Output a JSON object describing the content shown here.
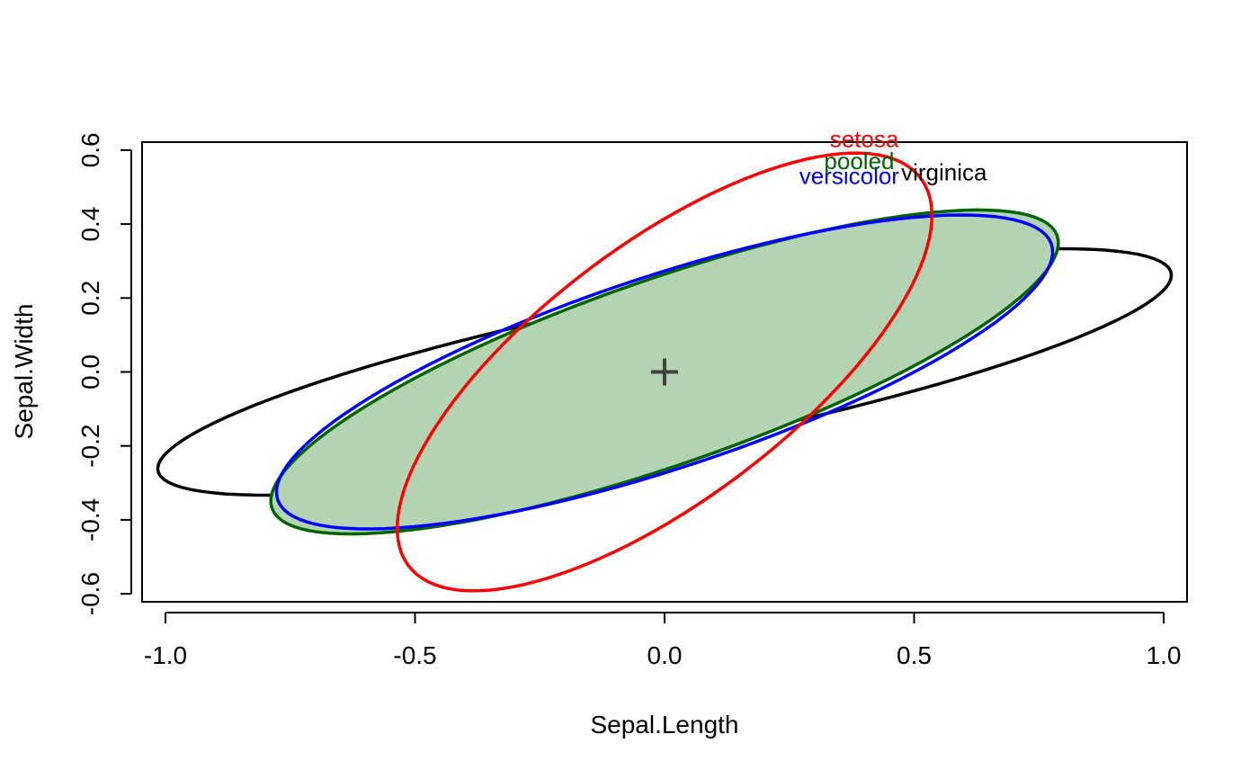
{
  "chart_data": {
    "type": "ellipse",
    "title": "",
    "xlabel": "Sepal.Length",
    "ylabel": "Sepal.Width",
    "xlim": [
      -1.05,
      1.05
    ],
    "ylim": [
      -0.62,
      0.63
    ],
    "x_ticks": [
      "-1.0",
      "-0.5",
      "0.0",
      "0.5",
      "1.0"
    ],
    "x_tick_values": [
      -1.0,
      -0.5,
      0.0,
      0.5,
      1.0
    ],
    "y_ticks": [
      "-0.6",
      "-0.4",
      "-0.2",
      "0.0",
      "0.2",
      "0.4",
      "0.6"
    ],
    "y_tick_values": [
      -0.6,
      -0.4,
      -0.2,
      0.0,
      0.2,
      0.4,
      0.6
    ],
    "grid": false,
    "center": [
      0.0,
      0.0
    ],
    "center_marker": "+",
    "center_color": "#404040",
    "series": [
      {
        "name": "setosa",
        "color": "#ff0000",
        "fill": "none",
        "semi_axes": [
          0.74,
          0.3
        ],
        "angle_deg": 49,
        "label_at": [
          0.4,
          0.63
        ]
      },
      {
        "name": "versicolor",
        "color": "#0000ff",
        "fill": "none",
        "semi_axes": [
          0.85,
          0.25
        ],
        "angle_deg": 25,
        "label_at": [
          0.37,
          0.53
        ]
      },
      {
        "name": "virginica",
        "color": "#000000",
        "fill": "none",
        "semi_axes": [
          1.05,
          0.2
        ],
        "angle_deg": 15,
        "label_at": [
          0.56,
          0.54
        ]
      },
      {
        "name": "pooled",
        "color": "#006400",
        "fill": "#b3d3b3",
        "semi_axes": [
          0.87,
          0.24
        ],
        "angle_deg": 26,
        "label_at": [
          0.39,
          0.57
        ]
      }
    ]
  }
}
